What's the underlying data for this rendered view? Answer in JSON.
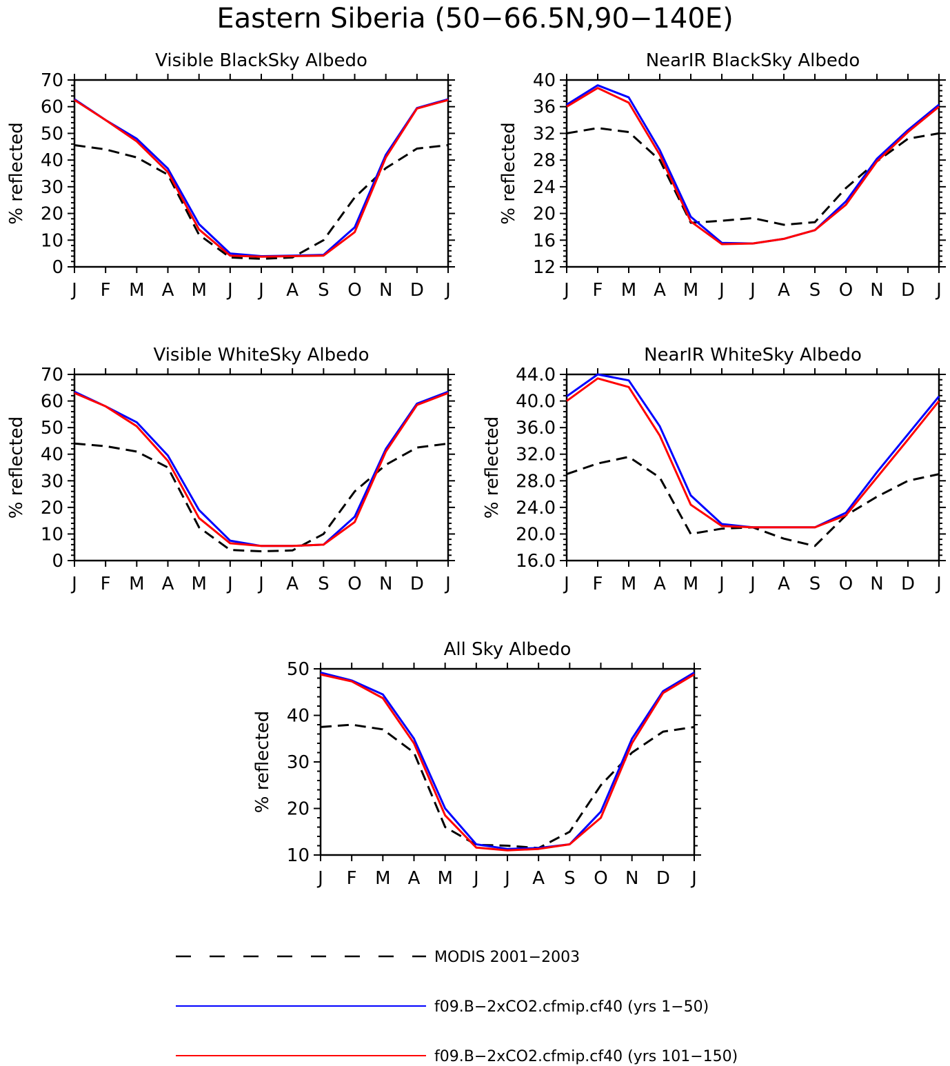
{
  "figure": {
    "title": "Eastern Siberia (50−66.5N,90−140E)"
  },
  "colors": {
    "modis": "#000000",
    "run1": "#0000ff",
    "run2": "#ff0000"
  },
  "legend": [
    {
      "key": "modis",
      "label": "MODIS 2001−2003",
      "style": "dashed"
    },
    {
      "key": "run1",
      "label": "f09.B−2xCO2.cfmip.cf40 (yrs 1−50)",
      "style": "solid"
    },
    {
      "key": "run2",
      "label": "f09.B−2xCO2.cfmip.cf40 (yrs 101−150)",
      "style": "solid"
    }
  ],
  "chart_data": [
    {
      "type": "line",
      "title": "Visible BlackSky Albedo",
      "ylabel": "% reflected",
      "xlabel": "",
      "categories": [
        "J",
        "F",
        "M",
        "A",
        "M",
        "J",
        "J",
        "A",
        "S",
        "O",
        "N",
        "D",
        "J"
      ],
      "ylim": [
        0,
        70
      ],
      "yticks": [
        0,
        10,
        20,
        30,
        40,
        50,
        60,
        70
      ],
      "yticklabels": [
        "0",
        "10",
        "20",
        "30",
        "40",
        "50",
        "60",
        "70"
      ],
      "series": [
        {
          "key": "modis",
          "values": [
            45.6,
            44.0,
            41.0,
            34.5,
            12.0,
            3.5,
            3.0,
            3.5,
            10.0,
            26.0,
            37.0,
            44.3,
            45.6
          ]
        },
        {
          "key": "run1",
          "values": [
            62.8,
            55.0,
            48.0,
            36.8,
            16.0,
            5.0,
            4.0,
            4.2,
            4.5,
            14.8,
            42.0,
            59.5,
            62.8
          ]
        },
        {
          "key": "run2",
          "values": [
            62.5,
            55.0,
            47.0,
            35.5,
            14.0,
            4.2,
            3.8,
            4.0,
            4.2,
            13.0,
            41.0,
            59.3,
            62.5
          ]
        }
      ]
    },
    {
      "type": "line",
      "title": "NearIR BlackSky Albedo",
      "ylabel": "% reflected",
      "xlabel": "",
      "categories": [
        "J",
        "F",
        "M",
        "A",
        "M",
        "J",
        "J",
        "A",
        "S",
        "O",
        "N",
        "D",
        "J"
      ],
      "ylim": [
        12,
        40
      ],
      "yticks": [
        12,
        16,
        20,
        24,
        28,
        32,
        36,
        40
      ],
      "yticklabels": [
        "12",
        "16",
        "20",
        "24",
        "28",
        "32",
        "36",
        "40"
      ],
      "series": [
        {
          "key": "modis",
          "values": [
            32.0,
            32.8,
            32.2,
            28.0,
            18.6,
            18.9,
            19.3,
            18.3,
            18.7,
            23.8,
            27.8,
            31.2,
            32.0
          ]
        },
        {
          "key": "run1",
          "values": [
            36.3,
            39.2,
            37.4,
            29.5,
            19.5,
            15.6,
            15.5,
            16.2,
            17.5,
            21.8,
            28.2,
            32.5,
            36.3
          ]
        },
        {
          "key": "run2",
          "values": [
            36.0,
            38.8,
            36.6,
            28.8,
            18.8,
            15.4,
            15.5,
            16.2,
            17.5,
            21.3,
            27.8,
            32.2,
            36.0
          ]
        }
      ]
    },
    {
      "type": "line",
      "title": "Visible WhiteSky Albedo",
      "ylabel": "% reflected",
      "xlabel": "",
      "categories": [
        "J",
        "F",
        "M",
        "A",
        "M",
        "J",
        "J",
        "A",
        "S",
        "O",
        "N",
        "D",
        "J"
      ],
      "ylim": [
        0,
        70
      ],
      "yticks": [
        0,
        10,
        20,
        30,
        40,
        50,
        60,
        70
      ],
      "yticklabels": [
        "0",
        "10",
        "20",
        "30",
        "40",
        "50",
        "60",
        "70"
      ],
      "series": [
        {
          "key": "modis",
          "values": [
            44.0,
            43.0,
            41.0,
            35.0,
            12.5,
            4.0,
            3.5,
            3.8,
            10.0,
            26.0,
            36.0,
            42.5,
            44.0
          ]
        },
        {
          "key": "run1",
          "values": [
            63.5,
            58.0,
            52.0,
            39.5,
            19.0,
            7.5,
            5.5,
            5.5,
            6.0,
            16.5,
            42.0,
            59.0,
            63.5
          ]
        },
        {
          "key": "run2",
          "values": [
            63.0,
            58.0,
            50.5,
            37.5,
            16.0,
            6.5,
            5.5,
            5.5,
            6.0,
            14.5,
            41.0,
            58.5,
            63.0
          ]
        }
      ]
    },
    {
      "type": "line",
      "title": "NearIR WhiteSky Albedo",
      "ylabel": "% reflected",
      "xlabel": "",
      "categories": [
        "J",
        "F",
        "M",
        "A",
        "M",
        "J",
        "J",
        "A",
        "S",
        "O",
        "N",
        "D",
        "J"
      ],
      "ylim": [
        16,
        44
      ],
      "yticks": [
        16,
        20,
        24,
        28,
        32,
        36,
        40,
        44
      ],
      "yticklabels": [
        "16.0",
        "20.0",
        "24.0",
        "28.0",
        "32.0",
        "36.0",
        "40.0",
        "44.0"
      ],
      "series": [
        {
          "key": "modis",
          "values": [
            29.0,
            30.6,
            31.6,
            28.5,
            20.0,
            20.8,
            21.0,
            19.3,
            18.2,
            22.8,
            25.6,
            28.0,
            29.0
          ]
        },
        {
          "key": "run1",
          "values": [
            40.7,
            44.0,
            43.1,
            36.2,
            25.8,
            21.5,
            21.0,
            21.0,
            21.0,
            23.2,
            29.3,
            35.0,
            40.7
          ]
        },
        {
          "key": "run2",
          "values": [
            40.0,
            43.4,
            42.1,
            34.8,
            24.4,
            21.2,
            21.0,
            21.0,
            21.0,
            22.8,
            28.5,
            34.2,
            40.0
          ]
        }
      ]
    },
    {
      "type": "line",
      "title": "All Sky Albedo",
      "ylabel": "% reflected",
      "xlabel": "",
      "categories": [
        "J",
        "F",
        "M",
        "A",
        "M",
        "J",
        "J",
        "A",
        "S",
        "O",
        "N",
        "D",
        "J"
      ],
      "ylim": [
        10,
        50
      ],
      "yticks": [
        10,
        20,
        30,
        40,
        50
      ],
      "yticklabels": [
        "10",
        "20",
        "30",
        "40",
        "50"
      ],
      "series": [
        {
          "key": "modis",
          "values": [
            37.5,
            38.0,
            37.0,
            32.0,
            16.0,
            12.2,
            12.0,
            11.5,
            15.0,
            25.0,
            32.0,
            36.5,
            37.5
          ]
        },
        {
          "key": "run1",
          "values": [
            49.2,
            47.5,
            44.5,
            35.0,
            20.0,
            12.3,
            11.3,
            11.5,
            12.3,
            19.3,
            35.0,
            45.2,
            49.2
          ]
        },
        {
          "key": "run2",
          "values": [
            48.8,
            47.3,
            43.7,
            34.0,
            18.5,
            11.6,
            11.0,
            11.3,
            12.3,
            18.0,
            34.0,
            44.8,
            48.8
          ]
        }
      ]
    }
  ]
}
